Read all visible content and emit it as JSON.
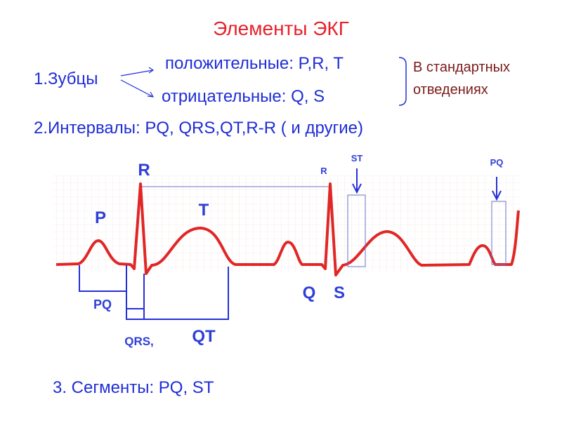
{
  "header": {
    "title": "Элементы ЭКГ"
  },
  "waves": {
    "label": "1.Зубцы",
    "positive": "положительные: P,R, T",
    "negative": "отрицательные: Q, S",
    "note_line1": "В стандартных",
    "note_line2": "отведениях"
  },
  "intervals": "2.Интервалы: PQ, QRS,QT,R-R ( и другие)",
  "segments": "3. Сегменты: PQ, ST",
  "diagram": {
    "labels": {
      "r": "R",
      "p": "P",
      "t": "T",
      "q": "Q",
      "s": "S",
      "r2": "R",
      "st": "ST",
      "pq_top": "PQ",
      "pq": "PQ",
      "qrs": "QRS,",
      "qt": "QT"
    }
  }
}
